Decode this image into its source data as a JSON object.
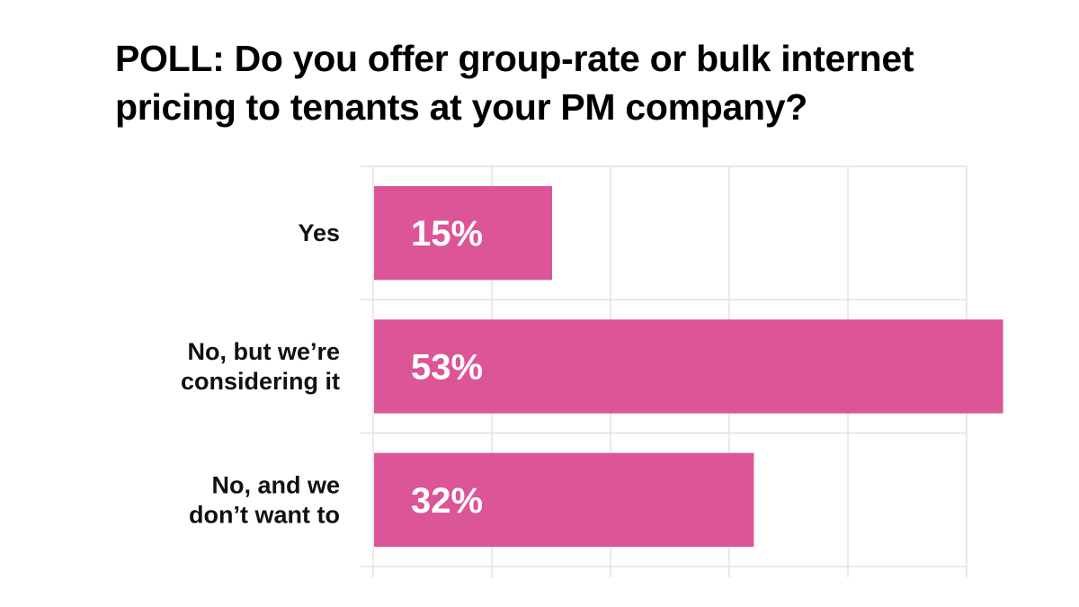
{
  "chart_data": {
    "type": "bar",
    "orientation": "horizontal",
    "title": "POLL: Do you offer group-rate or bulk internet pricing to tenants at your PM company?",
    "categories": [
      [
        "Yes"
      ],
      [
        "No, but we’re",
        "considering it"
      ],
      [
        "No, and we",
        "don’t want to"
      ]
    ],
    "values": [
      15,
      53,
      32
    ],
    "value_labels": [
      "15%",
      "53%",
      "32%"
    ],
    "xlim": [
      0,
      50
    ],
    "grid": true,
    "bar_color": "#DC5596",
    "grid_color": "#E2E2E2"
  }
}
